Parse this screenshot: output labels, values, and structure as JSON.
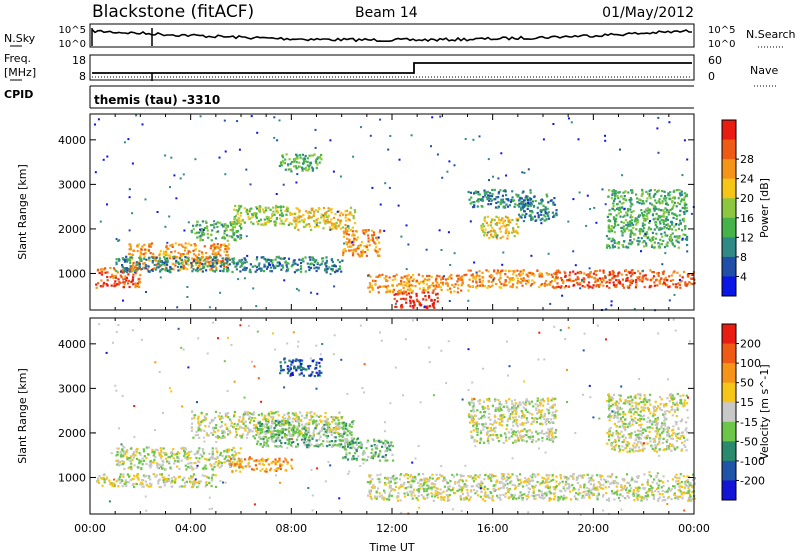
{
  "header": {
    "station": "Blackstone (fitACF)",
    "beam": "Beam 14",
    "date": "01/May/2012"
  },
  "strip_labels": {
    "nsky": "N.Sky",
    "nsky_hi": "10^5",
    "nsky_lo": "10^0",
    "nsearch": "N.Search",
    "freq_line1": "Freq.",
    "freq_line2": "[MHz]",
    "freq_hi": "18",
    "freq_lo": "8",
    "nave_hi": "60",
    "nave_lo": "0",
    "nave": "Nave",
    "cpid": "CPID",
    "cpid_text": "themis (tau) -3310"
  },
  "xaxis": {
    "ticks": [
      "00:00",
      "04:00",
      "08:00",
      "12:00",
      "16:00",
      "20:00",
      "00:00"
    ],
    "label": "Time UT"
  },
  "chart_data": [
    {
      "type": "heatmap",
      "name": "power",
      "ylabel": "Slant Range [km]",
      "ylim": [
        180,
        4580
      ],
      "yticks": [
        1000,
        2000,
        3000,
        4000
      ],
      "xlim_hours": [
        0,
        24
      ],
      "colorbar_label": "Power [dB]",
      "colorbar_ticks": [
        "4",
        "8",
        "12",
        "16",
        "20",
        "24",
        "28"
      ],
      "colors": [
        "#0a16e6",
        "#1f4fa8",
        "#2f8a86",
        "#46b24a",
        "#8dc73f",
        "#f5c518",
        "#f59418",
        "#ef5a14",
        "#e81c10"
      ],
      "bands": [
        {
          "t0": 0.2,
          "t1": 2.0,
          "r0": 700,
          "r1": 1150,
          "level": 7
        },
        {
          "t0": 1.5,
          "t1": 5.5,
          "r0": 1100,
          "r1": 1700,
          "level": 6
        },
        {
          "t0": 4.0,
          "t1": 6.0,
          "r0": 1750,
          "r1": 2200,
          "level": 3
        },
        {
          "t0": 5.5,
          "t1": 8.0,
          "r0": 2100,
          "r1": 2550,
          "level": 4
        },
        {
          "t0": 8.0,
          "t1": 10.5,
          "r0": 2000,
          "r1": 2500,
          "level": 5
        },
        {
          "t0": 10.0,
          "t1": 11.5,
          "r0": 1400,
          "r1": 2000,
          "level": 6
        },
        {
          "t0": 7.5,
          "t1": 9.2,
          "r0": 3300,
          "r1": 3700,
          "level": 3
        },
        {
          "t0": 12.0,
          "t1": 13.8,
          "r0": 250,
          "r1": 600,
          "level": 8
        },
        {
          "t0": 11.0,
          "t1": 15.0,
          "r0": 600,
          "r1": 1000,
          "level": 6
        },
        {
          "t0": 15.0,
          "t1": 18.5,
          "r0": 700,
          "r1": 1100,
          "level": 6
        },
        {
          "t0": 18.5,
          "t1": 24.0,
          "r0": 700,
          "r1": 1100,
          "level": 7
        },
        {
          "t0": 15.5,
          "t1": 17.0,
          "r0": 1800,
          "r1": 2300,
          "level": 5
        },
        {
          "t0": 17.0,
          "t1": 18.5,
          "r0": 2200,
          "r1": 2800,
          "level": 2
        },
        {
          "t0": 20.5,
          "t1": 23.7,
          "r0": 1600,
          "r1": 2900,
          "level": 3
        },
        {
          "t0": 15.0,
          "t1": 17.5,
          "r0": 2500,
          "r1": 2900,
          "level": 2
        },
        {
          "t0": 1.0,
          "t1": 10.0,
          "r0": 1050,
          "r1": 1400,
          "level": 2
        }
      ]
    },
    {
      "type": "heatmap",
      "name": "velocity",
      "ylabel": "Slant Range [km]",
      "ylim": [
        180,
        4580
      ],
      "yticks": [
        1000,
        2000,
        3000,
        4000
      ],
      "xlim_hours": [
        0,
        24
      ],
      "colorbar_label": "Velocity [m s^-1]",
      "colorbar_ticks": [
        "200",
        "100",
        "50",
        "15",
        "-15",
        "-50",
        "-100",
        "-200"
      ],
      "colors": [
        "#1414d6",
        "#1f55a8",
        "#2a8a6e",
        "#6cc64a",
        "#c8c8c8",
        "#f5c518",
        "#f59418",
        "#ef5a14",
        "#e81c10"
      ],
      "bands": [
        {
          "t0": 0.2,
          "t1": 5.0,
          "r0": 800,
          "r1": 1100,
          "level": 4
        },
        {
          "t0": 1.0,
          "t1": 6.0,
          "r0": 1200,
          "r1": 1700,
          "level": 4
        },
        {
          "t0": 5.5,
          "t1": 8.0,
          "r0": 1150,
          "r1": 1450,
          "level": 6
        },
        {
          "t0": 4.0,
          "t1": 10.0,
          "r0": 1900,
          "r1": 2500,
          "level": 4
        },
        {
          "t0": 6.5,
          "t1": 10.5,
          "r0": 1700,
          "r1": 2300,
          "level": 3
        },
        {
          "t0": 10.0,
          "t1": 12.0,
          "r0": 1400,
          "r1": 1900,
          "level": 3
        },
        {
          "t0": 7.5,
          "t1": 9.2,
          "r0": 3300,
          "r1": 3700,
          "level": 1
        },
        {
          "t0": 11.0,
          "t1": 24.0,
          "r0": 500,
          "r1": 1100,
          "level": 4
        },
        {
          "t0": 15.0,
          "t1": 18.5,
          "r0": 1800,
          "r1": 2800,
          "level": 4
        },
        {
          "t0": 20.5,
          "t1": 23.7,
          "r0": 1600,
          "r1": 2900,
          "level": 4
        }
      ]
    }
  ]
}
